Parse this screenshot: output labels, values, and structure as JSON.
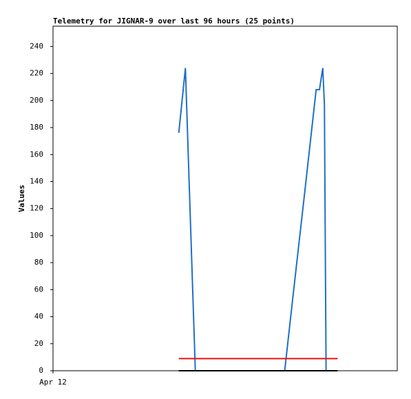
{
  "chart_data": {
    "type": "line",
    "title": "Telemetry for JIGNAR-9 over last 96 hours (25 points)",
    "y_label": "Values",
    "xlim": [
      0,
      208
    ],
    "xticks": [
      {
        "value": 0,
        "label": "Apr 12"
      }
    ],
    "ylim": [
      0,
      255
    ],
    "yticks": [
      0,
      20,
      40,
      60,
      80,
      100,
      120,
      140,
      160,
      180,
      200,
      220,
      240
    ],
    "series": [
      {
        "color": "#1f6fc5",
        "x": [
          76,
          80,
          86,
          90,
          94,
          98,
          102,
          106,
          110,
          114,
          118,
          122,
          126,
          130,
          134,
          140,
          145,
          152,
          159,
          161,
          163,
          164,
          165,
          168,
          172
        ],
        "values": [
          176,
          224,
          0,
          0,
          0,
          0,
          0,
          0,
          0,
          0,
          0,
          0,
          0,
          0,
          0,
          0,
          55,
          131,
          208,
          208,
          224,
          197,
          0,
          0,
          0
        ]
      },
      {
        "color": "#ee1111",
        "x": [
          76,
          172
        ],
        "values": [
          9,
          9
        ]
      },
      {
        "color": "#000000",
        "x": [
          76,
          172
        ],
        "values": [
          0,
          0
        ]
      }
    ]
  }
}
